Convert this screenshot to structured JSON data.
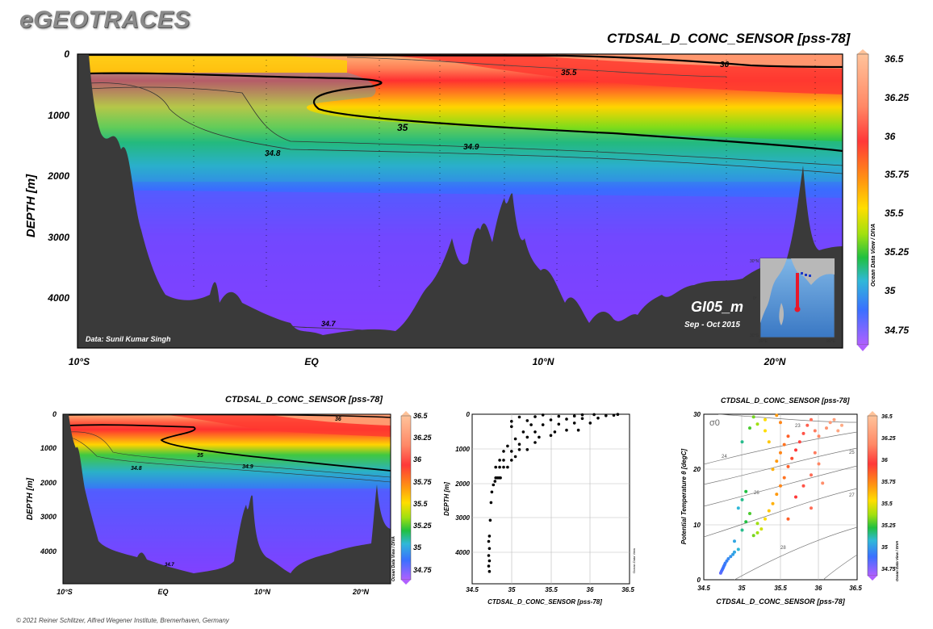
{
  "app": {
    "title": "eGEOTRACES"
  },
  "footer": {
    "credit": "© 2021 Reiner Schlitzer, Alfred Wegener Institute, Bremerhaven, Germany"
  },
  "chart_data": [
    {
      "type": "heatmap",
      "title": "CTDSAL_D_CONC_SENSOR [pss-78]",
      "ylabel": "DEPTH [m]",
      "xlabel": "",
      "x_tick_labels": [
        "10°S",
        "EQ",
        "10°N",
        "20°N"
      ],
      "y_tick_labels": [
        "0",
        "1000",
        "2000",
        "3000",
        "4000"
      ],
      "ylim": [
        4800,
        0
      ],
      "colorbar": {
        "labels": [
          "36.5",
          "36.25",
          "36",
          "35.75",
          "35.5",
          "35.25",
          "35",
          "34.75"
        ],
        "range": [
          34.65,
          36.5
        ],
        "side_label": "Ocean Data View / DIVA"
      },
      "contour_labels": [
        "36",
        "35.5",
        "35",
        "34.9",
        "34.8",
        "34.7"
      ],
      "annotations": {
        "data_credit": "Data: Sunil Kumar Singh",
        "section": "GI05_m",
        "period": "Sep - Oct 2015"
      },
      "inset_map_ticks": [
        "30°N",
        "0°",
        "30°S",
        "30°E",
        "90°E"
      ]
    },
    {
      "type": "heatmap",
      "title": "CTDSAL_D_CONC_SENSOR [pss-78]",
      "ylabel": "DEPTH [m]",
      "xlabel": "",
      "x_tick_labels": [
        "10°S",
        "EQ",
        "10°N",
        "20°N"
      ],
      "y_tick_labels": [
        "0",
        "1000",
        "2000",
        "3000",
        "4000"
      ],
      "ylim": [
        4800,
        0
      ],
      "colorbar": {
        "labels": [
          "36.5",
          "36.25",
          "36",
          "35.75",
          "35.5",
          "35.25",
          "35",
          "34.75"
        ],
        "side_label": "Ocean Data View / DIVA"
      },
      "contour_labels": [
        "36",
        "35",
        "34.9",
        "34.8",
        "34.7"
      ]
    },
    {
      "type": "scatter",
      "title": "",
      "xlabel": "CTDSAL_D_CONC_SENSOR [pss-78]",
      "ylabel": "DEPTH [m]",
      "x_tick_labels": [
        "34.5",
        "35",
        "35.5",
        "36",
        "36.5"
      ],
      "y_tick_labels": [
        "0",
        "1000",
        "2000",
        "3000",
        "4000"
      ],
      "xlim": [
        34.5,
        36.5
      ],
      "ylim": [
        4800,
        0
      ],
      "side_label": "Ocean Data View",
      "points": [
        [
          34.72,
          4450
        ],
        [
          34.71,
          4300
        ],
        [
          34.72,
          4150
        ],
        [
          34.71,
          4000
        ],
        [
          34.72,
          3800
        ],
        [
          34.71,
          3600
        ],
        [
          34.72,
          3450
        ],
        [
          34.73,
          3000
        ],
        [
          34.74,
          2500
        ],
        [
          34.75,
          2200
        ],
        [
          34.77,
          2000
        ],
        [
          34.79,
          1900
        ],
        [
          34.8,
          1800
        ],
        [
          34.82,
          1800
        ],
        [
          34.84,
          1800
        ],
        [
          34.86,
          1800
        ],
        [
          34.8,
          1500
        ],
        [
          34.85,
          1500
        ],
        [
          34.9,
          1500
        ],
        [
          34.95,
          1500
        ],
        [
          34.85,
          1300
        ],
        [
          34.9,
          1300
        ],
        [
          35.0,
          1300
        ],
        [
          35.05,
          1200
        ],
        [
          34.9,
          1050
        ],
        [
          35.0,
          1050
        ],
        [
          35.1,
          1000
        ],
        [
          35.2,
          1000
        ],
        [
          34.95,
          900
        ],
        [
          35.1,
          850
        ],
        [
          35.3,
          800
        ],
        [
          35.05,
          700
        ],
        [
          35.2,
          650
        ],
        [
          35.35,
          650
        ],
        [
          35.5,
          600
        ],
        [
          35.15,
          500
        ],
        [
          35.3,
          500
        ],
        [
          35.55,
          500
        ],
        [
          35.7,
          450
        ],
        [
          35.85,
          450
        ],
        [
          35.0,
          350
        ],
        [
          35.25,
          300
        ],
        [
          35.4,
          300
        ],
        [
          35.6,
          280
        ],
        [
          35.8,
          250
        ],
        [
          36.0,
          250
        ],
        [
          35.0,
          200
        ],
        [
          35.2,
          180
        ],
        [
          35.5,
          160
        ],
        [
          35.7,
          140
        ],
        [
          35.9,
          120
        ],
        [
          36.1,
          110
        ],
        [
          35.1,
          80
        ],
        [
          35.3,
          70
        ],
        [
          35.6,
          60
        ],
        [
          35.8,
          50
        ],
        [
          36.2,
          40
        ],
        [
          36.3,
          30
        ],
        [
          35.4,
          20
        ],
        [
          35.9,
          15
        ],
        [
          36.05,
          10
        ],
        [
          36.35,
          5
        ]
      ]
    },
    {
      "type": "scatter",
      "title": "CTDSAL_D_CONC_SENSOR [pss-78]",
      "xlabel": "CTDSAL_D_CONC_SENSOR [pss-78]",
      "ylabel": "Potential Temperature θ [degC]",
      "x_tick_labels": [
        "34.5",
        "35",
        "35.5",
        "36",
        "36.5"
      ],
      "y_tick_labels": [
        "0",
        "10",
        "20",
        "30"
      ],
      "xlim": [
        34.5,
        36.5
      ],
      "ylim": [
        0,
        30
      ],
      "isopycnal_label": "σ0",
      "isopycnal_values": [
        "23",
        "24",
        "25",
        "26",
        "27",
        "28"
      ],
      "colorbar": {
        "labels": [
          "36.5",
          "36.25",
          "36",
          "35.75",
          "35.5",
          "35.25",
          "35",
          "34.75"
        ],
        "side_label": "Ocean Data View / DIVA"
      },
      "points": [
        [
          34.72,
          1.2
        ],
        [
          34.73,
          1.5
        ],
        [
          34.74,
          1.8
        ],
        [
          34.75,
          2.1
        ],
        [
          34.76,
          2.4
        ],
        [
          34.77,
          2.7
        ],
        [
          34.78,
          3.0
        ],
        [
          34.8,
          3.4
        ],
        [
          34.82,
          3.8
        ],
        [
          34.85,
          4.2
        ],
        [
          34.88,
          4.6
        ],
        [
          34.9,
          5.0
        ],
        [
          34.95,
          5.5
        ],
        [
          34.9,
          7.0
        ],
        [
          35.0,
          9.0
        ],
        [
          35.05,
          10.5
        ],
        [
          35.1,
          12.0
        ],
        [
          34.95,
          13.0
        ],
        [
          35.0,
          14.5
        ],
        [
          35.05,
          16.0
        ],
        [
          35.15,
          8.0
        ],
        [
          35.2,
          8.5
        ],
        [
          35.25,
          9.2
        ],
        [
          35.2,
          10.2
        ],
        [
          35.3,
          11.0
        ],
        [
          35.35,
          12.5
        ],
        [
          35.4,
          13.8
        ],
        [
          35.45,
          15.5
        ],
        [
          35.5,
          17.0
        ],
        [
          35.55,
          18.5
        ],
        [
          35.4,
          20.0
        ],
        [
          35.45,
          21.5
        ],
        [
          35.5,
          23.0
        ],
        [
          35.55,
          24.5
        ],
        [
          35.6,
          26.0
        ],
        [
          35.35,
          25.0
        ],
        [
          35.3,
          27.0
        ],
        [
          35.5,
          28.5
        ],
        [
          35.45,
          29.8
        ],
        [
          35.6,
          20.5
        ],
        [
          35.65,
          22.0
        ],
        [
          35.7,
          23.5
        ],
        [
          35.75,
          25.0
        ],
        [
          35.8,
          26.5
        ],
        [
          35.85,
          28.0
        ],
        [
          35.9,
          29.0
        ],
        [
          35.95,
          27.0
        ],
        [
          36.0,
          26.0
        ],
        [
          36.1,
          27.5
        ],
        [
          36.15,
          28.5
        ],
        [
          36.2,
          29.0
        ],
        [
          36.25,
          27.0
        ],
        [
          35.95,
          23.0
        ],
        [
          36.0,
          21.0
        ],
        [
          35.9,
          19.0
        ],
        [
          35.8,
          17.0
        ],
        [
          35.7,
          15.0
        ],
        [
          36.05,
          17.5
        ],
        [
          35.9,
          13.0
        ],
        [
          35.6,
          11.0
        ],
        [
          35.1,
          27.5
        ],
        [
          35.15,
          29.5
        ],
        [
          35.3,
          29.0
        ],
        [
          36.3,
          28.0
        ],
        [
          35.0,
          25.0
        ],
        [
          35.2,
          28.2
        ]
      ]
    }
  ]
}
